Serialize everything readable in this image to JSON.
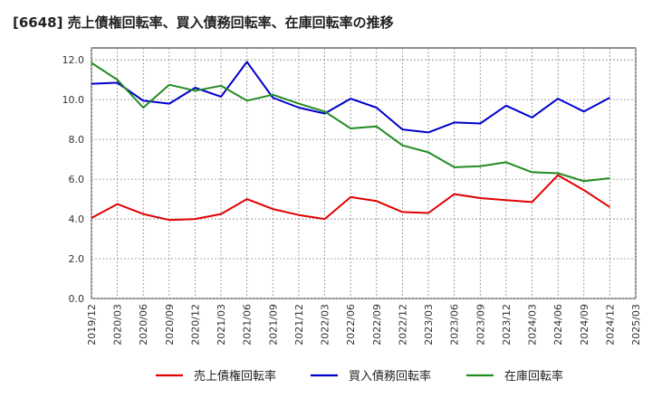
{
  "chart_data": {
    "type": "line",
    "title": "[6648]  売上債権回転率、買入債務回転率、在庫回転率の推移",
    "xlabel": "",
    "ylabel": "",
    "ylim": [
      0,
      12.6
    ],
    "yticks": [
      0,
      2,
      4,
      6,
      8,
      10,
      12
    ],
    "ytick_labels": [
      "0.0",
      "2.0",
      "4.0",
      "6.0",
      "8.0",
      "10.0",
      "12.0"
    ],
    "categories": [
      "2019/12",
      "2020/03",
      "2020/06",
      "2020/09",
      "2020/12",
      "2021/03",
      "2021/06",
      "2021/09",
      "2021/12",
      "2022/03",
      "2022/06",
      "2022/09",
      "2022/12",
      "2023/03",
      "2023/06",
      "2023/09",
      "2023/12",
      "2024/03",
      "2024/06",
      "2024/09",
      "2024/12",
      "2025/03"
    ],
    "series": [
      {
        "name": "売上債権回転率",
        "color": "#e00000",
        "values": [
          4.05,
          4.75,
          4.25,
          3.95,
          4.0,
          4.25,
          5.0,
          4.5,
          4.2,
          4.0,
          5.1,
          4.9,
          4.35,
          4.3,
          5.25,
          5.05,
          4.95,
          4.85,
          6.2,
          5.45,
          4.6,
          null
        ]
      },
      {
        "name": "買入債務回転率",
        "color": "#0000cc",
        "values": [
          10.8,
          10.85,
          9.95,
          9.8,
          10.6,
          10.15,
          11.9,
          10.1,
          9.6,
          9.3,
          10.05,
          9.6,
          8.5,
          8.35,
          8.85,
          8.8,
          9.7,
          9.1,
          10.05,
          9.4,
          10.1,
          null
        ]
      },
      {
        "name": "在庫回転率",
        "color": "#228b22",
        "values": [
          11.85,
          11.0,
          9.6,
          10.75,
          10.45,
          10.7,
          9.95,
          10.25,
          9.8,
          9.4,
          8.55,
          8.65,
          7.7,
          7.35,
          6.6,
          6.65,
          6.85,
          6.35,
          6.3,
          5.9,
          6.05,
          null
        ]
      }
    ],
    "legend_position": "bottom",
    "grid": true
  }
}
